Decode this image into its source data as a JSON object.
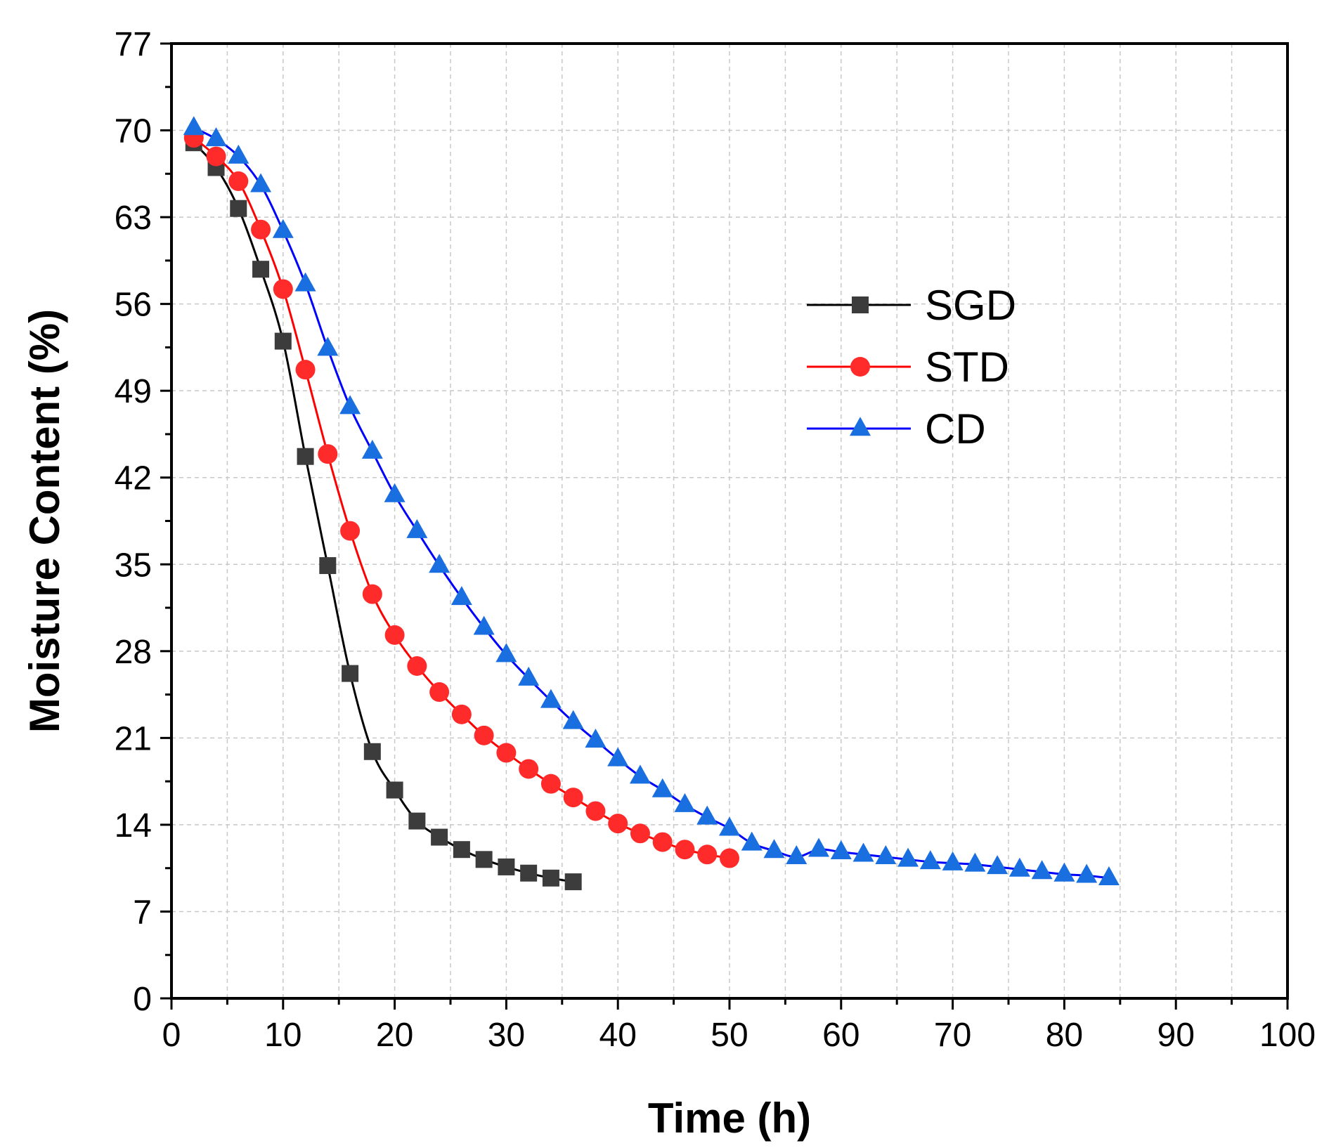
{
  "chart_data": {
    "type": "line",
    "title": "",
    "xlabel": "Time (h)",
    "ylabel": "Moisture Content (%)",
    "xlim": [
      0,
      100
    ],
    "ylim": [
      0,
      77
    ],
    "xticks": [
      "0",
      "10",
      "20",
      "30",
      "40",
      "50",
      "60",
      "70",
      "80",
      "90",
      "100"
    ],
    "yticks": [
      "0",
      "7",
      "14",
      "21",
      "28",
      "35",
      "42",
      "49",
      "56",
      "63",
      "70",
      "77"
    ],
    "grid": true,
    "legend_position": "right",
    "series": [
      {
        "name": "SGD",
        "color": "#000000",
        "marker": "square",
        "marker_color": "#3c3c3c",
        "x": [
          2,
          4,
          6,
          8,
          10,
          12,
          14,
          16,
          18,
          20,
          22,
          24,
          26,
          28,
          30,
          32,
          34,
          36
        ],
        "y": [
          69.0,
          67.0,
          63.7,
          58.8,
          53.0,
          43.7,
          34.9,
          26.2,
          19.9,
          16.8,
          14.3,
          13.0,
          12.0,
          11.2,
          10.6,
          10.1,
          9.7,
          9.4
        ]
      },
      {
        "name": "STD",
        "color": "#ff0000",
        "marker": "circle",
        "marker_color": "#ff2a2a",
        "x": [
          2,
          4,
          6,
          8,
          10,
          12,
          14,
          16,
          18,
          20,
          22,
          24,
          26,
          28,
          30,
          32,
          34,
          36,
          38,
          40,
          42,
          44,
          46,
          48,
          50
        ],
        "y": [
          69.4,
          67.9,
          65.9,
          62.0,
          57.2,
          50.7,
          43.9,
          37.7,
          32.6,
          29.3,
          26.8,
          24.7,
          22.9,
          21.2,
          19.8,
          18.5,
          17.3,
          16.2,
          15.1,
          14.1,
          13.3,
          12.6,
          12.0,
          11.6,
          11.3
        ]
      },
      {
        "name": "CD",
        "color": "#0000ff",
        "marker": "triangle",
        "marker_color": "#1a6fe0",
        "x": [
          2,
          4,
          6,
          8,
          10,
          12,
          14,
          16,
          18,
          20,
          22,
          24,
          26,
          28,
          30,
          32,
          34,
          36,
          38,
          40,
          42,
          44,
          46,
          48,
          50,
          52,
          54,
          56,
          58,
          60,
          62,
          64,
          66,
          68,
          70,
          72,
          74,
          76,
          78,
          80,
          82,
          84
        ],
        "y": [
          70.2,
          69.3,
          67.9,
          65.6,
          61.9,
          57.6,
          52.4,
          47.7,
          44.1,
          40.6,
          37.7,
          34.9,
          32.3,
          29.9,
          27.7,
          25.8,
          24.0,
          22.3,
          20.8,
          19.3,
          17.9,
          16.8,
          15.6,
          14.6,
          13.7,
          12.5,
          11.9,
          11.4,
          12.0,
          11.8,
          11.6,
          11.4,
          11.2,
          11.0,
          10.9,
          10.8,
          10.6,
          10.4,
          10.2,
          10.0,
          9.9,
          9.7
        ]
      }
    ]
  }
}
